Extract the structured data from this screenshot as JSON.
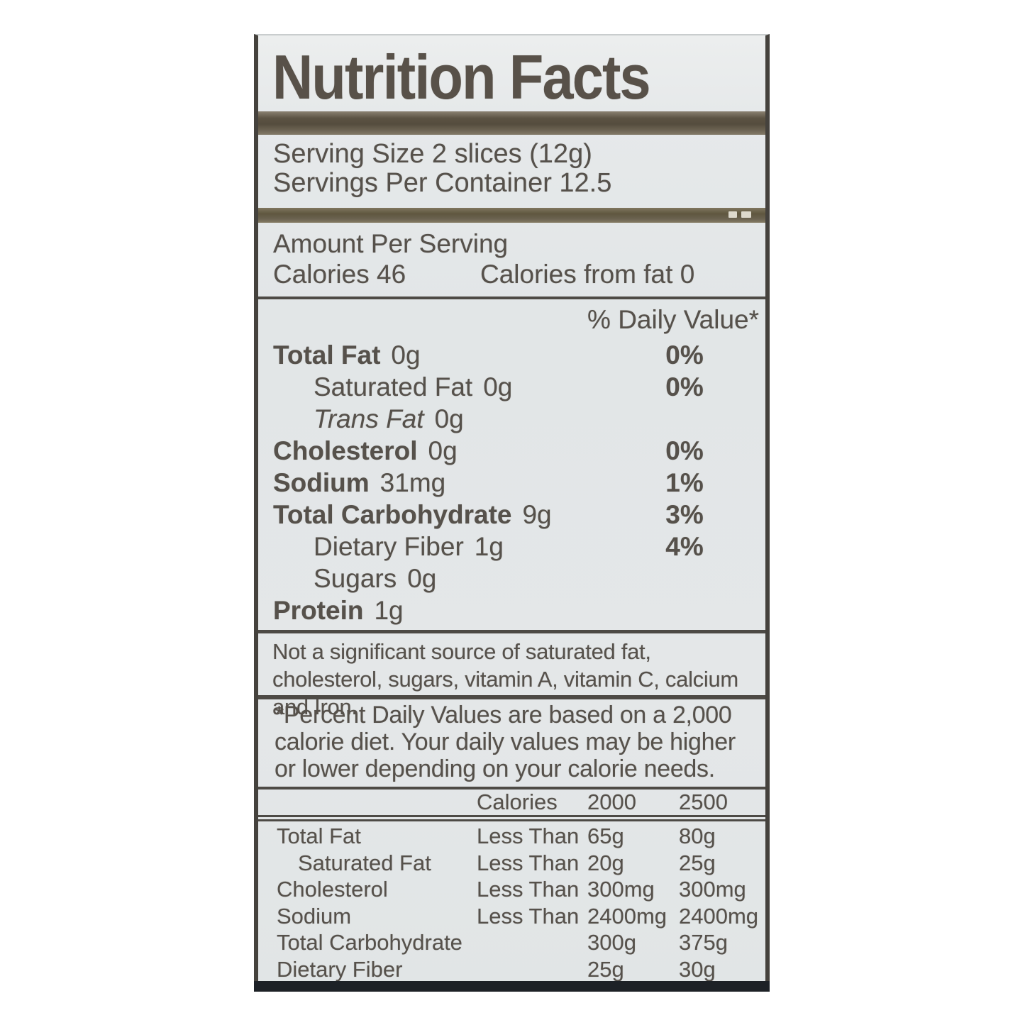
{
  "label": {
    "title": "Nutrition Facts",
    "serving": {
      "size": "Serving Size 2 slices (12g)",
      "per_container": "Servings Per Container 12.5"
    },
    "amount_per_serving": "Amount Per Serving",
    "calories_line": "Calories 46",
    "calories_from_fat": "Calories from fat 0",
    "daily_value_header": "% Daily Value*",
    "nutrients": [
      {
        "name": "Total Fat",
        "amount": "0g",
        "dv": "0%"
      },
      {
        "name": "Saturated Fat",
        "amount": "0g",
        "dv": "0%"
      },
      {
        "name": "Trans Fat",
        "amount": "0g",
        "dv": ""
      },
      {
        "name": "Cholesterol",
        "amount": "0g",
        "dv": "0%"
      },
      {
        "name": "Sodium",
        "amount": "31mg",
        "dv": "1%"
      },
      {
        "name": "Total Carbohydrate",
        "amount": "9g",
        "dv": "3%"
      },
      {
        "name": "Dietary Fiber",
        "amount": "1g",
        "dv": "4%"
      },
      {
        "name": "Sugars",
        "amount": "0g",
        "dv": ""
      },
      {
        "name": "Protein",
        "amount": "1g",
        "dv": ""
      }
    ],
    "not_significant": "Not a significant source of saturated fat, cholesterol, sugars, vitamin A, vitamin C, calcium and Iron.",
    "percent_note": "*Percent Daily Values are based on a 2,000 calorie diet. Your daily values may be higher or lower depending on your calorie needs.",
    "footnote_table": {
      "header": {
        "col1": "Calories",
        "col2": "2000",
        "col3": "2500"
      },
      "rows": [
        {
          "name": "Total Fat",
          "qualifier": "Less Than",
          "v2000": "65g",
          "v2500": "80g"
        },
        {
          "name": "Saturated Fat",
          "qualifier": "Less Than",
          "v2000": "20g",
          "v2500": "25g"
        },
        {
          "name": "Cholesterol",
          "qualifier": "Less Than",
          "v2000": "300mg",
          "v2500": "300mg"
        },
        {
          "name": "Sodium",
          "qualifier": "Less Than",
          "v2000": "2400mg",
          "v2500": "2400mg"
        },
        {
          "name": "Total Carbohydrate",
          "qualifier": "",
          "v2000": "300g",
          "v2500": "375g"
        },
        {
          "name": "Dietary Fiber",
          "qualifier": "",
          "v2000": "25g",
          "v2500": "30g"
        }
      ]
    },
    "colors": {
      "page_bg": "#ffffff",
      "label_bg": "#e3e7e8",
      "text": "#56514b",
      "bar": "#5f5645",
      "bottom_bar": "#1d2126"
    }
  }
}
